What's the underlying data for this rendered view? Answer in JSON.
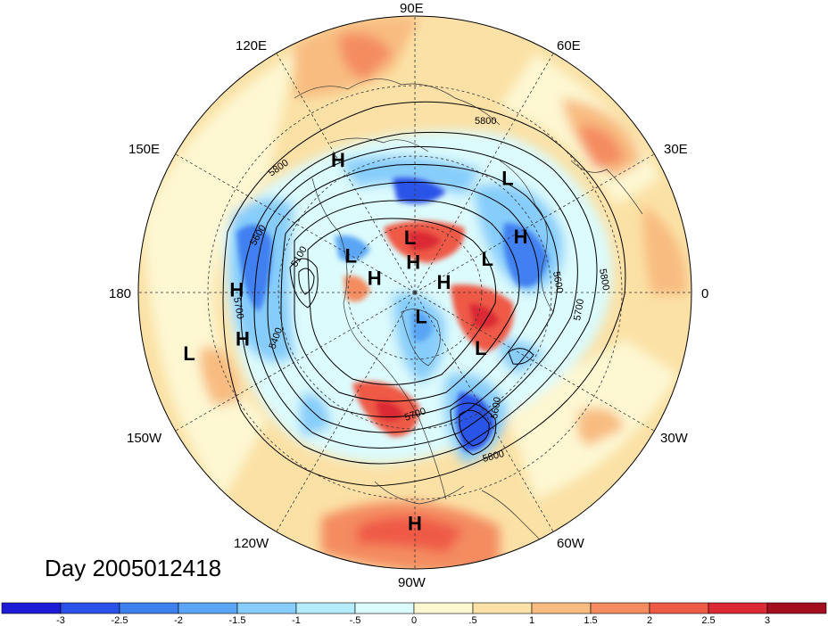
{
  "day_label": "Day 2005012418",
  "longitude_labels": {
    "e90": "90E",
    "e60": "60E",
    "e30": "30E",
    "lon0": "0",
    "w30": "30W",
    "w60": "60W",
    "w90": "90W",
    "w120": "120W",
    "w150": "150W",
    "lon180": "180",
    "e150": "150E",
    "e120": "120E"
  },
  "pressure_centers": [
    {
      "label": "L",
      "lon": 51,
      "lat": 42
    },
    {
      "label": "H",
      "lon": 28,
      "lat": 51
    },
    {
      "label": "H",
      "lon": 120,
      "lat": 40
    },
    {
      "label": "L",
      "lon": 95,
      "lat": 72
    },
    {
      "label": "H",
      "lon": 93,
      "lat": 80
    },
    {
      "label": "L",
      "lon": 25,
      "lat": 64
    },
    {
      "label": "L",
      "lon": 150,
      "lat": 66
    },
    {
      "label": "H",
      "lon": 160,
      "lat": 76
    },
    {
      "label": "H",
      "lon": 179,
      "lat": 32
    },
    {
      "label": "H",
      "lon": 20,
      "lat": 80
    },
    {
      "label": "L",
      "lon": -75,
      "lat": 82
    },
    {
      "label": "L",
      "lon": -40,
      "lat": 62
    },
    {
      "label": "H",
      "lon": -90,
      "lat": 15
    },
    {
      "label": "H",
      "lon": -165,
      "lat": 32
    },
    {
      "label": "L",
      "lon": -165,
      "lat": 14
    }
  ],
  "contour_labels": [
    "5800",
    "5800",
    "5600",
    "5100",
    "5700",
    "5400",
    "5600",
    "5800",
    "5600",
    "5700",
    "5800",
    "5700"
  ],
  "colorbar": {
    "colors": [
      "#1c1cd6",
      "#2b52e8",
      "#3f80f0",
      "#5aa5f5",
      "#86cdfb",
      "#b4ecfc",
      "#dcfbfc",
      "#fdf7d2",
      "#fbe1a6",
      "#f8bc80",
      "#f48c60",
      "#ef5a47",
      "#db2a36",
      "#a50e1e"
    ],
    "tick_labels": [
      "-3",
      "-2.5",
      "-2",
      "-1.5",
      "-1",
      "-.5",
      "0",
      ".5",
      "1",
      "1.5",
      "2",
      "2.5",
      "3"
    ]
  }
}
